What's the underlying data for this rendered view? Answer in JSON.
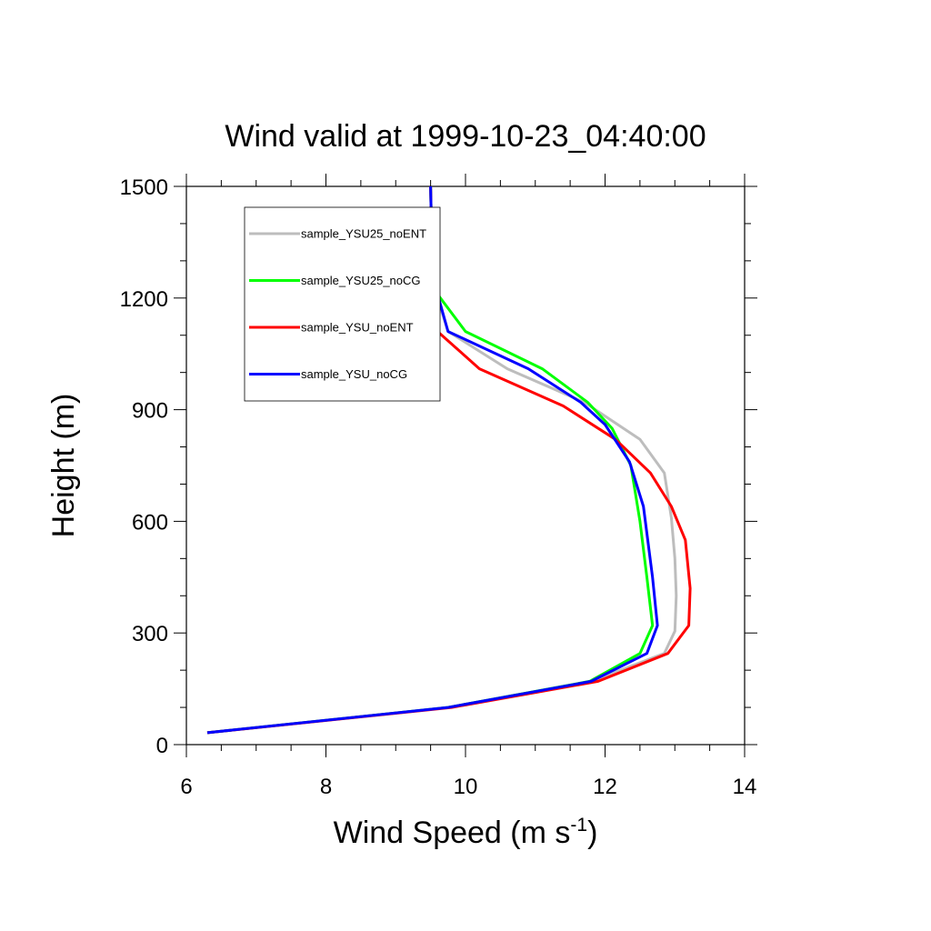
{
  "chart_data": {
    "type": "line",
    "title": "Wind valid at 1999-10-23_04:40:00",
    "xlabel": "Wind Speed (m s",
    "xlabel_sup": "-1",
    "xlabel_tail": ")",
    "ylabel": "Height (m)",
    "xlim": [
      6,
      14
    ],
    "ylim": [
      0,
      1500
    ],
    "x_ticks": [
      6,
      8,
      10,
      12,
      14
    ],
    "y_ticks": [
      0,
      300,
      600,
      900,
      1200,
      1500
    ],
    "grid": false,
    "legend_position": "top-left inside",
    "series": [
      {
        "name": "sample_YSU25_noENT",
        "color": "#bdbdbd",
        "points": [
          [
            6.3,
            32
          ],
          [
            9.75,
            100
          ],
          [
            11.8,
            170
          ],
          [
            12.85,
            245
          ],
          [
            13.0,
            305
          ],
          [
            13.02,
            400
          ],
          [
            13.0,
            500
          ],
          [
            12.95,
            610
          ],
          [
            12.85,
            730
          ],
          [
            12.5,
            820
          ],
          [
            11.7,
            920
          ],
          [
            10.6,
            1010
          ],
          [
            9.75,
            1110
          ],
          [
            9.58,
            1210
          ],
          [
            9.52,
            1320
          ],
          [
            9.5,
            1500
          ]
        ]
      },
      {
        "name": "sample_YSU25_noCG",
        "color": "#00ff00",
        "points": [
          [
            6.3,
            32
          ],
          [
            9.75,
            100
          ],
          [
            11.78,
            170
          ],
          [
            12.5,
            245
          ],
          [
            12.68,
            320
          ],
          [
            12.6,
            450
          ],
          [
            12.5,
            600
          ],
          [
            12.37,
            750
          ],
          [
            12.1,
            850
          ],
          [
            11.75,
            920
          ],
          [
            11.1,
            1010
          ],
          [
            10.0,
            1110
          ],
          [
            9.6,
            1210
          ],
          [
            9.52,
            1320
          ],
          [
            9.5,
            1500
          ]
        ]
      },
      {
        "name": "sample_YSU_noENT",
        "color": "#ff0000",
        "points": [
          [
            6.3,
            32
          ],
          [
            9.8,
            100
          ],
          [
            11.9,
            170
          ],
          [
            12.9,
            245
          ],
          [
            13.2,
            320
          ],
          [
            13.22,
            420
          ],
          [
            13.15,
            550
          ],
          [
            12.95,
            640
          ],
          [
            12.65,
            730
          ],
          [
            12.15,
            820
          ],
          [
            11.4,
            910
          ],
          [
            10.2,
            1010
          ],
          [
            9.6,
            1110
          ],
          [
            9.55,
            1210
          ],
          [
            9.52,
            1320
          ],
          [
            9.5,
            1500
          ]
        ]
      },
      {
        "name": "sample_YSU_noCG",
        "color": "#0000ff",
        "points": [
          [
            6.3,
            32
          ],
          [
            9.75,
            100
          ],
          [
            11.8,
            170
          ],
          [
            12.6,
            245
          ],
          [
            12.75,
            320
          ],
          [
            12.68,
            450
          ],
          [
            12.55,
            640
          ],
          [
            12.35,
            760
          ],
          [
            12.0,
            860
          ],
          [
            11.65,
            920
          ],
          [
            10.9,
            1010
          ],
          [
            9.75,
            1110
          ],
          [
            9.6,
            1210
          ],
          [
            9.52,
            1320
          ],
          [
            9.5,
            1500
          ]
        ]
      }
    ]
  }
}
